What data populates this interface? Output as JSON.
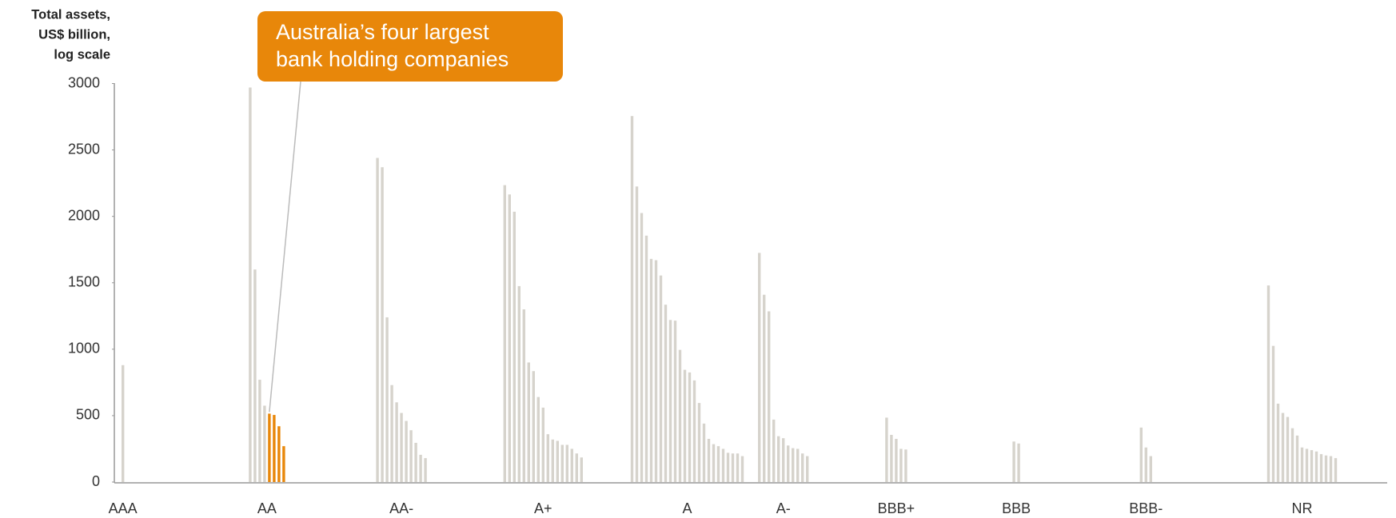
{
  "chart_data": {
    "type": "grouped-bar",
    "y_axis_label": [
      "Total assets,",
      "US$ billion,",
      "log scale"
    ],
    "annotation": {
      "text": [
        "Australia’s four largest",
        "bank holding companies"
      ],
      "color": "#e8870a",
      "group": 1,
      "bars": [
        4,
        5,
        6,
        7
      ]
    },
    "color": "#d6d3cc",
    "ylim": [
      0,
      3000
    ],
    "yticks": [
      0,
      500,
      1000,
      1500,
      2000,
      2500,
      3000
    ],
    "groups": [
      {
        "name": "AAA",
        "values": [
          880
        ]
      },
      {
        "name": "AA",
        "values": [
          2970,
          1600,
          770,
          575,
          515,
          505,
          420,
          270
        ]
      },
      {
        "name": "AA-",
        "values": [
          2440,
          2370,
          1240,
          730,
          600,
          520,
          460,
          390,
          295,
          205,
          180
        ]
      },
      {
        "name": "A+",
        "values": [
          2235,
          2165,
          2035,
          1475,
          1300,
          900,
          835,
          640,
          560,
          360,
          320,
          310,
          280,
          280,
          250,
          215,
          185
        ]
      },
      {
        "name": "A",
        "values": [
          2755,
          2225,
          2025,
          1855,
          1680,
          1670,
          1555,
          1335,
          1220,
          1215,
          995,
          845,
          825,
          765,
          595,
          440,
          325,
          285,
          270,
          250,
          220,
          215,
          215,
          195
        ]
      },
      {
        "name": "A-",
        "values": [
          1725,
          1410,
          1285,
          470,
          345,
          330,
          275,
          255,
          250,
          215,
          195
        ]
      },
      {
        "name": "BBB+",
        "values": [
          485,
          355,
          325,
          250,
          245
        ]
      },
      {
        "name": "BBB",
        "values": [
          305,
          290
        ]
      },
      {
        "name": "BBB-",
        "values": [
          410,
          260,
          195
        ]
      },
      {
        "name": "NR",
        "values": [
          1480,
          1025,
          590,
          520,
          490,
          405,
          350,
          260,
          250,
          240,
          230,
          210,
          200,
          195,
          180
        ]
      }
    ]
  }
}
